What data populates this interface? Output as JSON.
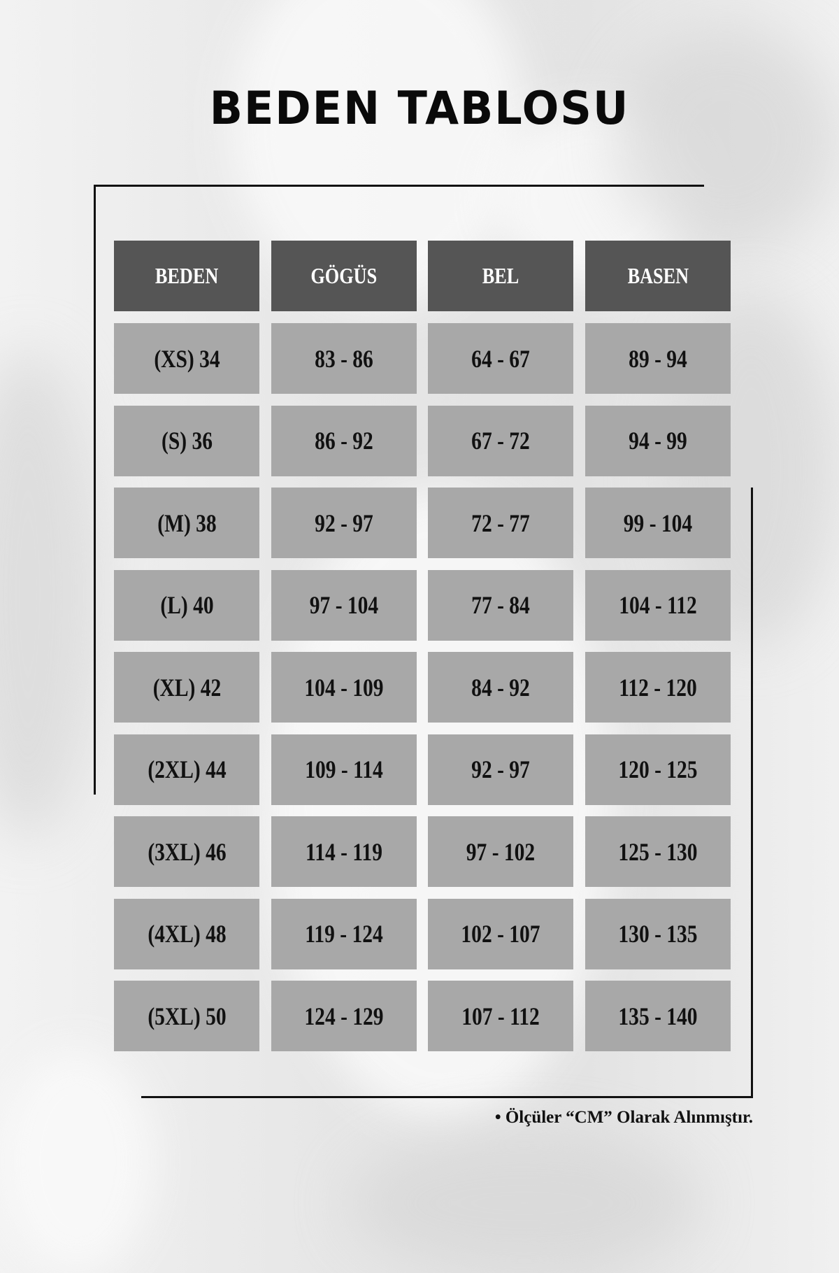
{
  "title": "BEDEN TABLOSU",
  "table": {
    "headers": [
      "BEDEN",
      "GÖGÜS",
      "BEL",
      "BASEN"
    ],
    "rows": [
      [
        "(XS) 34",
        "83 - 86",
        "64 - 67",
        "89 - 94"
      ],
      [
        "(S) 36",
        "86 - 92",
        "67 - 72",
        "94 - 99"
      ],
      [
        "(M) 38",
        "92 - 97",
        "72 - 77",
        "99 - 104"
      ],
      [
        "(L) 40",
        "97 - 104",
        "77 - 84",
        "104 - 112"
      ],
      [
        "(XL) 42",
        "104 - 109",
        "84 - 92",
        "112 - 120"
      ],
      [
        "(2XL) 44",
        "109 - 114",
        "92 - 97",
        "120 - 125"
      ],
      [
        "(3XL) 46",
        "114 - 119",
        "97 - 102",
        "125 - 130"
      ],
      [
        "(4XL) 48",
        "119 - 124",
        "102 - 107",
        "130 - 135"
      ],
      [
        "(5XL) 50",
        "124 - 129",
        "107 - 112",
        "135 - 140"
      ]
    ]
  },
  "note": "• Ölçüler “CM” Olarak Alınmıştır.",
  "colors": {
    "header_bg": "#555555",
    "cell_bg": "#a8a8a8",
    "text": "#111111"
  }
}
